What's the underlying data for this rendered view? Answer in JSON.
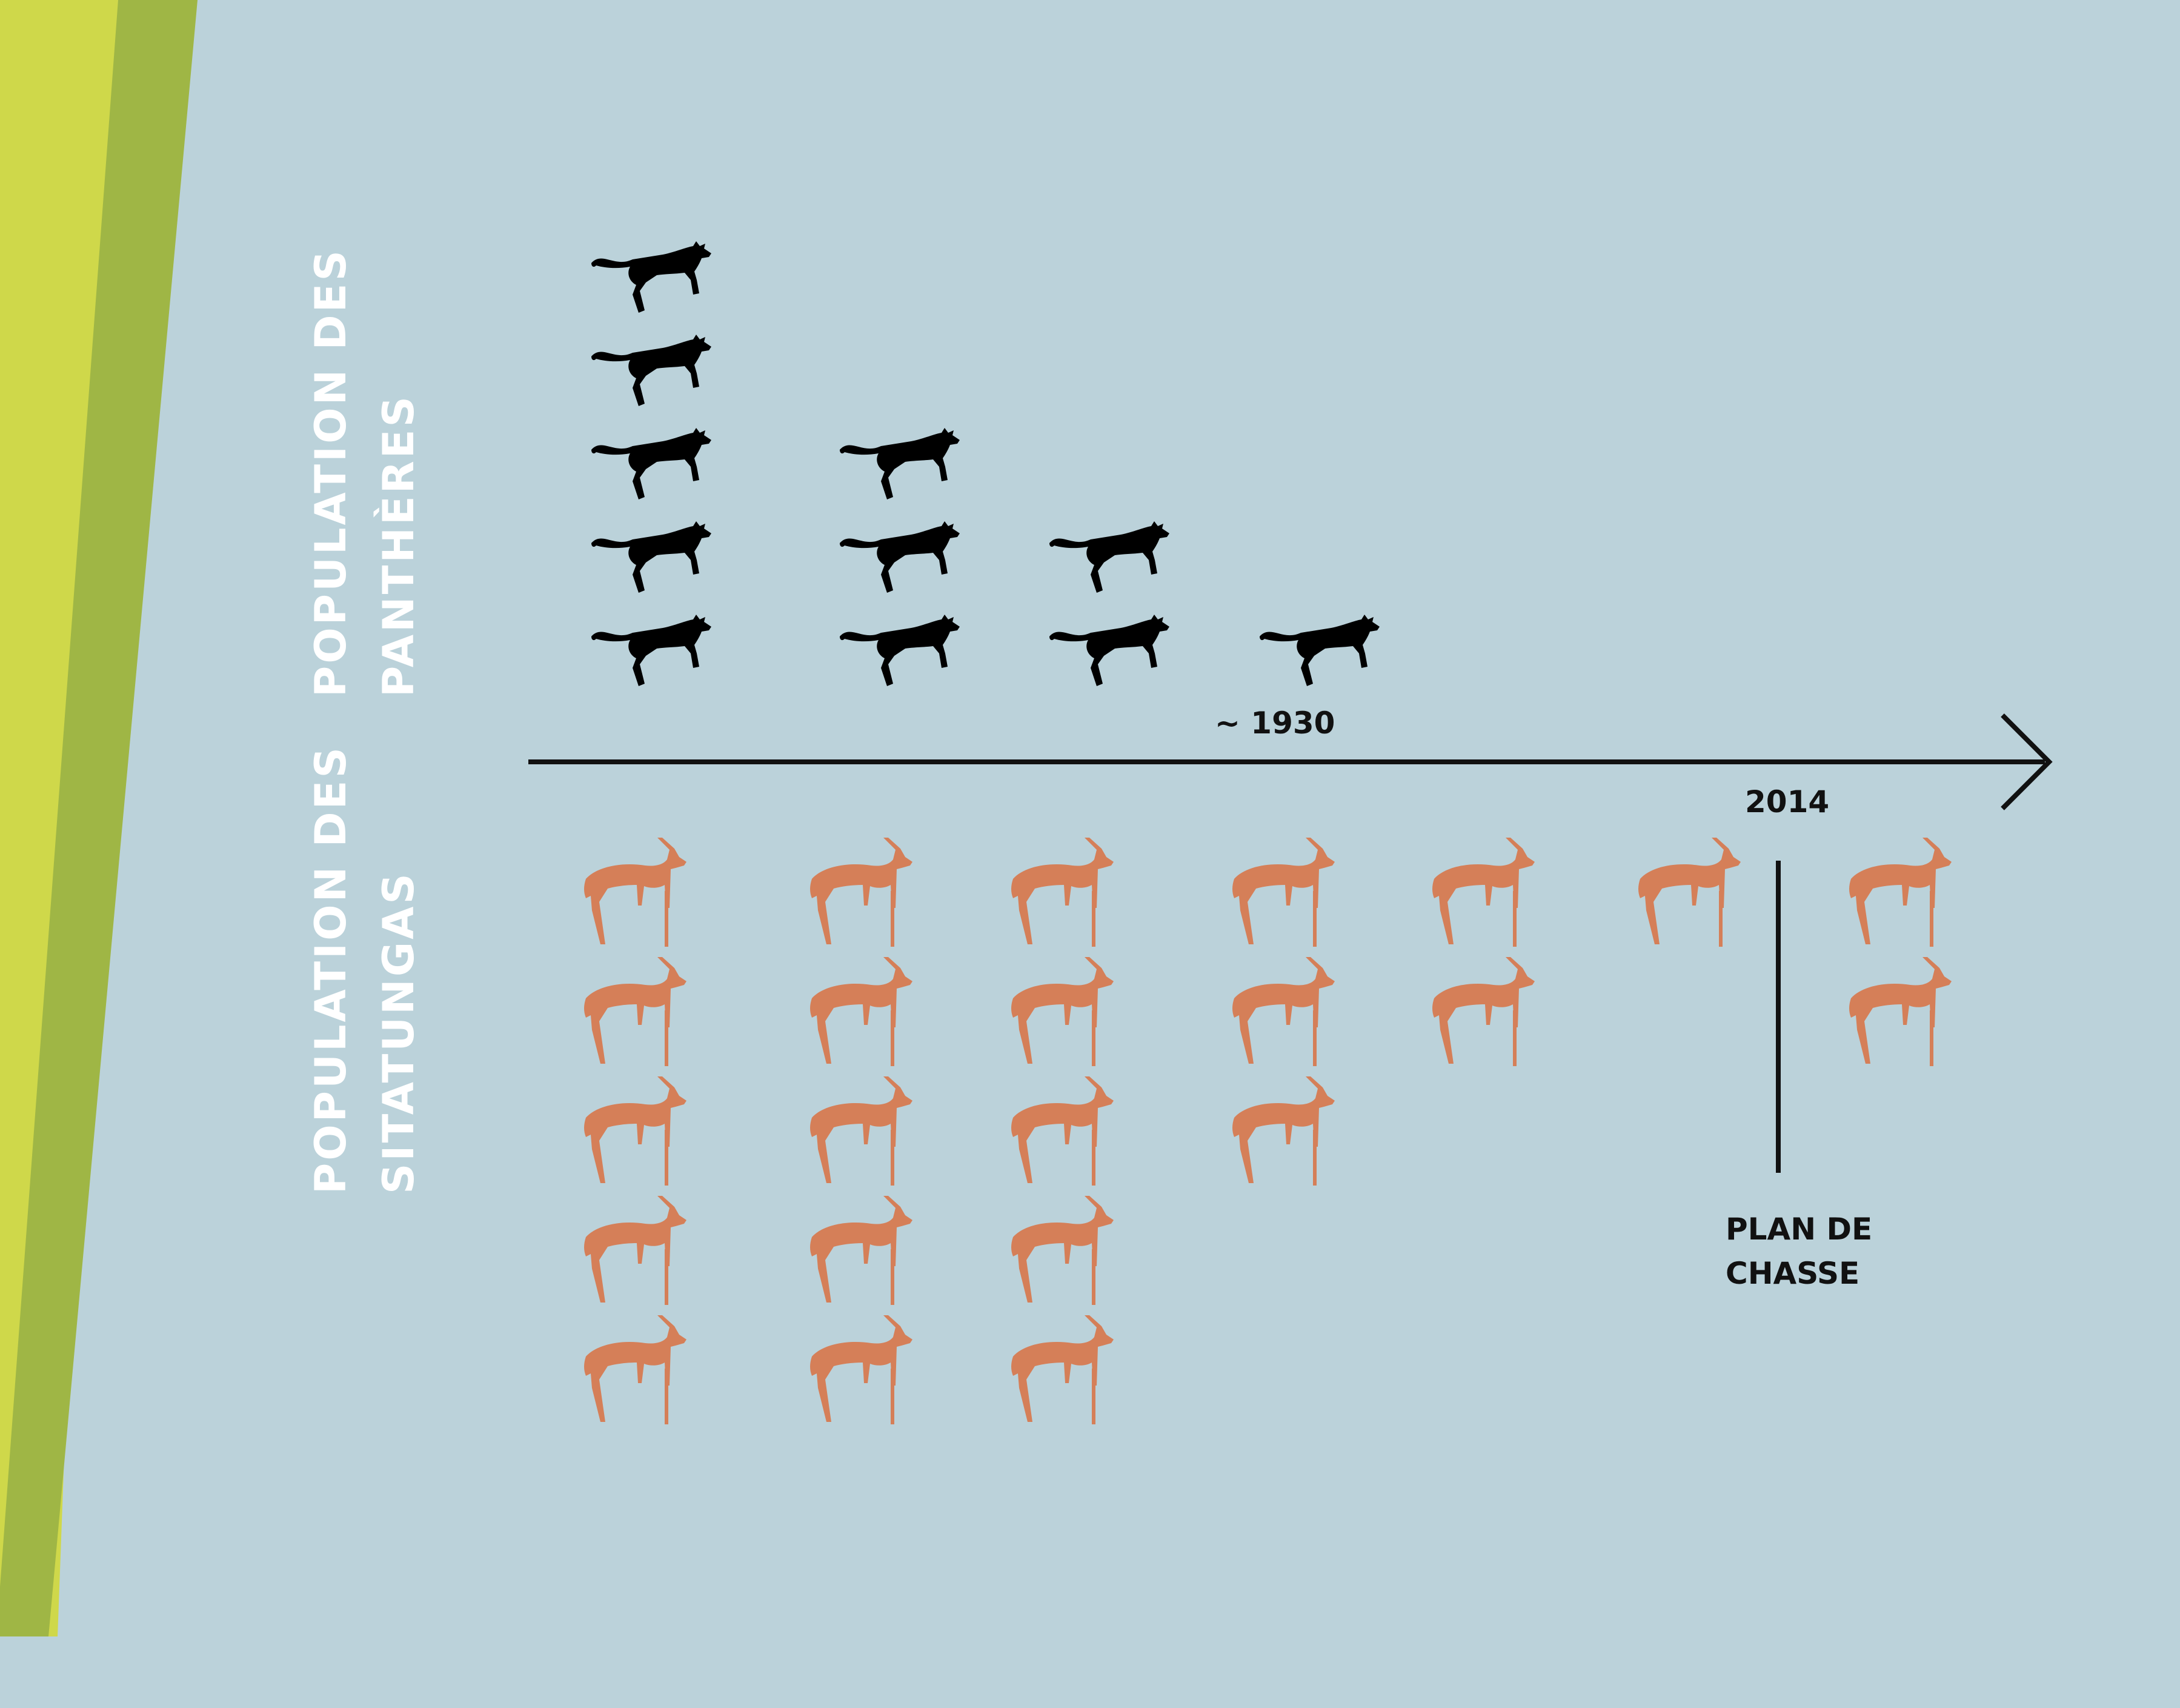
{
  "colors": {
    "background": "#bbd2da",
    "stripe_light": "#cfd84a",
    "stripe_dark": "#9fb645",
    "panther": "#000000",
    "sitatunga": "#d57f58",
    "axis": "#111111",
    "label": "#ffffff"
  },
  "icons": {
    "panther": "panther-icon",
    "sitatunga": "sitatunga-icon"
  },
  "chart_data": {
    "type": "pictograph",
    "title": "",
    "axis": {
      "x_label": "",
      "time_markers": [
        "~ 1930",
        "2014"
      ],
      "annotation": "PLAN DE CHASSE"
    },
    "series": [
      {
        "name": "POPULATION DES PANTHÈRES",
        "icon": "panther-icon",
        "values": [
          5,
          3,
          2,
          1,
          0,
          0,
          0
        ]
      },
      {
        "name": "POPULATION DES SITATUNGAS",
        "icon": "sitatunga-icon",
        "values": [
          5,
          5,
          5,
          3,
          2,
          1,
          2
        ]
      }
    ],
    "series_label_lines": [
      [
        "POPULATION DES",
        "PANTHÈRES"
      ],
      [
        "POPULATION DES",
        "SITATUNGAS"
      ]
    ]
  }
}
